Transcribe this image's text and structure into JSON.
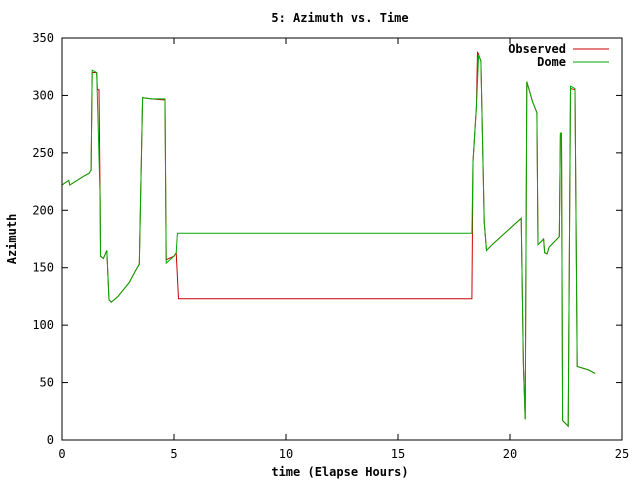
{
  "chart_data": {
    "type": "line",
    "title": "5: Azimuth vs. Time",
    "xlabel": "time (Elapse Hours)",
    "ylabel": "Azimuth",
    "xlim": [
      0,
      25
    ],
    "ylim": [
      0,
      350
    ],
    "xticks": [
      0,
      5,
      10,
      15,
      20,
      25
    ],
    "yticks": [
      0,
      50,
      100,
      150,
      200,
      250,
      300,
      350
    ],
    "grid": false,
    "legend_position": "top-right",
    "series": [
      {
        "name": "Observed",
        "color": "#cc0000",
        "points": [
          [
            0,
            222
          ],
          [
            0.3,
            226
          ],
          [
            0.35,
            222
          ],
          [
            1.0,
            230
          ],
          [
            1.2,
            232
          ],
          [
            1.3,
            235
          ],
          [
            1.35,
            320
          ],
          [
            1.55,
            320
          ],
          [
            1.58,
            305
          ],
          [
            1.65,
            305
          ],
          [
            1.7,
            212
          ],
          [
            1.72,
            160
          ],
          [
            1.85,
            158
          ],
          [
            2.0,
            165
          ],
          [
            2.1,
            122
          ],
          [
            2.2,
            120
          ],
          [
            2.5,
            125
          ],
          [
            3.0,
            137
          ],
          [
            3.3,
            148
          ],
          [
            3.45,
            153
          ],
          [
            3.6,
            298
          ],
          [
            4.0,
            297
          ],
          [
            4.6,
            296
          ],
          [
            4.65,
            157
          ],
          [
            5.0,
            160
          ],
          [
            5.1,
            163
          ],
          [
            5.2,
            123
          ],
          [
            18.3,
            123
          ],
          [
            18.35,
            242
          ],
          [
            18.5,
            290
          ],
          [
            18.55,
            338
          ],
          [
            18.7,
            330
          ],
          [
            18.85,
            190
          ],
          [
            18.95,
            165
          ],
          [
            19.2,
            170
          ],
          [
            20.5,
            193
          ],
          [
            20.6,
            65
          ],
          [
            20.68,
            18
          ],
          [
            20.75,
            312
          ],
          [
            21.0,
            295
          ],
          [
            21.2,
            285
          ],
          [
            21.25,
            170
          ],
          [
            21.5,
            175
          ],
          [
            21.55,
            163
          ],
          [
            21.65,
            162
          ],
          [
            21.75,
            168
          ],
          [
            22.2,
            177
          ],
          [
            22.25,
            267
          ],
          [
            22.3,
            267
          ],
          [
            22.35,
            17
          ],
          [
            22.6,
            12
          ],
          [
            22.7,
            306
          ],
          [
            22.9,
            305
          ],
          [
            23.0,
            64
          ],
          [
            23.5,
            61
          ],
          [
            23.8,
            58
          ]
        ]
      },
      {
        "name": "Dome",
        "color": "#00aa00",
        "points": [
          [
            0,
            222
          ],
          [
            0.3,
            226
          ],
          [
            0.35,
            222
          ],
          [
            1.0,
            230
          ],
          [
            1.2,
            232
          ],
          [
            1.3,
            235
          ],
          [
            1.35,
            322
          ],
          [
            1.55,
            320
          ],
          [
            1.7,
            212
          ],
          [
            1.72,
            160
          ],
          [
            1.85,
            158
          ],
          [
            2.0,
            165
          ],
          [
            2.1,
            122
          ],
          [
            2.2,
            120
          ],
          [
            2.5,
            125
          ],
          [
            3.0,
            137
          ],
          [
            3.3,
            148
          ],
          [
            3.45,
            153
          ],
          [
            3.6,
            298
          ],
          [
            4.0,
            297
          ],
          [
            4.6,
            297
          ],
          [
            4.65,
            154
          ],
          [
            5.0,
            160
          ],
          [
            5.1,
            163
          ],
          [
            5.15,
            180
          ],
          [
            18.3,
            180
          ],
          [
            18.35,
            242
          ],
          [
            18.5,
            290
          ],
          [
            18.6,
            335
          ],
          [
            18.7,
            330
          ],
          [
            18.85,
            190
          ],
          [
            18.95,
            165
          ],
          [
            19.2,
            170
          ],
          [
            20.5,
            193
          ],
          [
            20.6,
            65
          ],
          [
            20.68,
            18
          ],
          [
            20.75,
            312
          ],
          [
            21.0,
            295
          ],
          [
            21.2,
            285
          ],
          [
            21.25,
            170
          ],
          [
            21.5,
            175
          ],
          [
            21.55,
            163
          ],
          [
            21.65,
            162
          ],
          [
            21.75,
            168
          ],
          [
            22.2,
            177
          ],
          [
            22.25,
            267
          ],
          [
            22.3,
            267
          ],
          [
            22.35,
            17
          ],
          [
            22.6,
            12
          ],
          [
            22.7,
            308
          ],
          [
            22.9,
            306
          ],
          [
            23.0,
            64
          ],
          [
            23.5,
            61
          ],
          [
            23.8,
            58
          ]
        ]
      }
    ]
  }
}
